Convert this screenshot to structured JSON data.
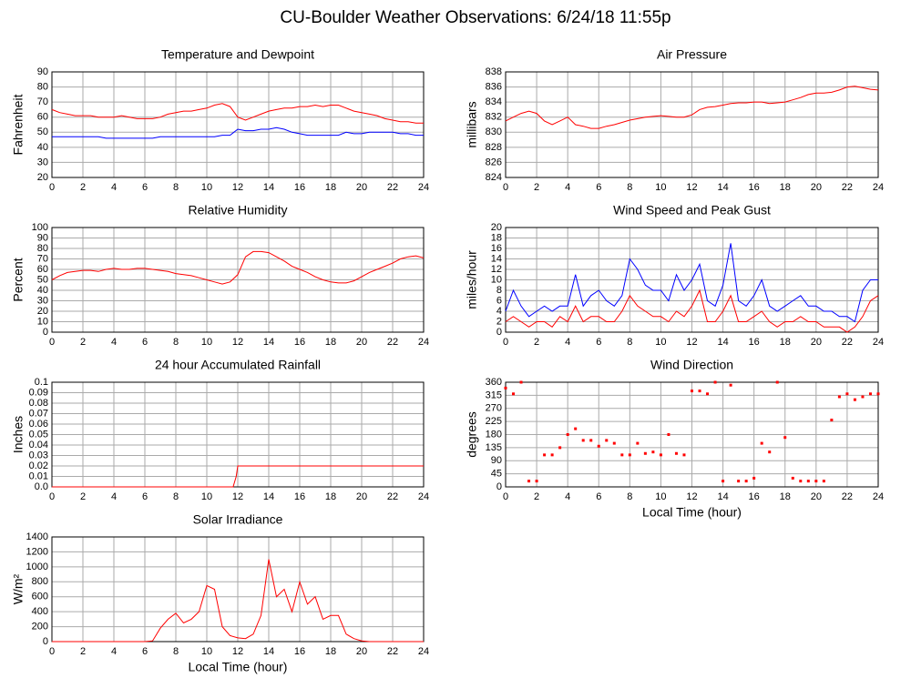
{
  "title": "CU-Boulder Weather Observations: 6/24/18 11:55p",
  "chart_data": [
    {
      "type": "line",
      "title": "Temperature and Dewpoint",
      "ylabel": "Fahrenheit",
      "x": [
        0,
        0.5,
        1,
        1.5,
        2,
        2.5,
        3,
        3.5,
        4,
        4.5,
        5,
        5.5,
        6,
        6.5,
        7,
        7.5,
        8,
        8.5,
        9,
        9.5,
        10,
        10.5,
        11,
        11.5,
        12,
        12.5,
        13,
        13.5,
        14,
        14.5,
        15,
        15.5,
        16,
        16.5,
        17,
        17.5,
        18,
        18.5,
        19,
        19.5,
        20,
        20.5,
        21,
        21.5,
        22,
        22.5,
        23,
        23.5,
        24
      ],
      "series": [
        {
          "color": "#ff0000",
          "values": [
            65,
            63,
            62,
            61,
            61,
            61,
            60,
            60,
            60,
            61,
            60,
            59,
            59,
            59,
            60,
            62,
            63,
            64,
            64,
            65,
            66,
            68,
            69,
            67,
            60,
            58,
            60,
            62,
            64,
            65,
            66,
            66,
            67,
            67,
            68,
            67,
            68,
            68,
            66,
            64,
            63,
            62,
            61,
            59,
            58,
            57,
            57,
            56,
            56
          ]
        },
        {
          "color": "#0000ff",
          "values": [
            47,
            47,
            47,
            47,
            47,
            47,
            47,
            46,
            46,
            46,
            46,
            46,
            46,
            46,
            47,
            47,
            47,
            47,
            47,
            47,
            47,
            47,
            48,
            48,
            52,
            51,
            51,
            52,
            52,
            53,
            52,
            50,
            49,
            48,
            48,
            48,
            48,
            48,
            50,
            49,
            49,
            50,
            50,
            50,
            50,
            49,
            49,
            48,
            48
          ]
        }
      ],
      "xlim": [
        0,
        24
      ],
      "xticks": [
        0,
        2,
        4,
        6,
        8,
        10,
        12,
        14,
        16,
        18,
        20,
        22,
        24
      ],
      "ylim": [
        20,
        90
      ],
      "yticks": [
        20,
        30,
        40,
        50,
        60,
        70,
        80,
        90
      ],
      "grid": true
    },
    {
      "type": "line",
      "title": "Air Pressure",
      "ylabel": "millibars",
      "x": [
        0,
        0.5,
        1,
        1.5,
        2,
        2.5,
        3,
        3.5,
        4,
        4.5,
        5,
        5.5,
        6,
        6.5,
        7,
        7.5,
        8,
        8.5,
        9,
        9.5,
        10,
        10.5,
        11,
        11.5,
        12,
        12.5,
        13,
        13.5,
        14,
        14.5,
        15,
        15.5,
        16,
        16.5,
        17,
        17.5,
        18,
        18.5,
        19,
        19.5,
        20,
        20.5,
        21,
        21.5,
        22,
        22.5,
        23,
        23.5,
        24
      ],
      "series": [
        {
          "color": "#ff0000",
          "values": [
            831.5,
            832,
            832.5,
            832.8,
            832.5,
            831.5,
            831,
            831.5,
            832,
            831,
            830.8,
            830.5,
            830.5,
            830.8,
            831,
            831.3,
            831.6,
            831.8,
            832,
            832.1,
            832.2,
            832.1,
            832,
            832,
            832.3,
            833,
            833.3,
            833.4,
            833.6,
            833.8,
            833.9,
            833.9,
            834,
            834,
            833.8,
            833.9,
            834,
            834.3,
            834.6,
            835,
            835.2,
            835.2,
            835.3,
            835.6,
            836,
            836.1,
            835.9,
            835.7,
            835.6
          ]
        }
      ],
      "xlim": [
        0,
        24
      ],
      "xticks": [
        0,
        2,
        4,
        6,
        8,
        10,
        12,
        14,
        16,
        18,
        20,
        22,
        24
      ],
      "ylim": [
        824,
        838
      ],
      "yticks": [
        824,
        826,
        828,
        830,
        832,
        834,
        836,
        838
      ],
      "grid": true
    },
    {
      "type": "line",
      "title": "Relative Humidity",
      "ylabel": "Percent",
      "x": [
        0,
        0.5,
        1,
        1.5,
        2,
        2.5,
        3,
        3.5,
        4,
        4.5,
        5,
        5.5,
        6,
        6.5,
        7,
        7.5,
        8,
        8.5,
        9,
        9.5,
        10,
        10.5,
        11,
        11.5,
        12,
        12.5,
        13,
        13.5,
        14,
        14.5,
        15,
        15.5,
        16,
        16.5,
        17,
        17.5,
        18,
        18.5,
        19,
        19.5,
        20,
        20.5,
        21,
        21.5,
        22,
        22.5,
        23,
        23.5,
        24
      ],
      "series": [
        {
          "color": "#ff0000",
          "values": [
            50,
            54,
            57,
            58,
            59,
            59,
            58,
            60,
            61,
            60,
            60,
            61,
            61,
            60,
            59,
            58,
            56,
            55,
            54,
            52,
            50,
            48,
            46,
            48,
            55,
            72,
            77,
            77,
            76,
            72,
            68,
            63,
            60,
            57,
            53,
            50,
            48,
            47,
            47,
            49,
            53,
            57,
            60,
            63,
            66,
            70,
            72,
            73,
            71
          ]
        }
      ],
      "xlim": [
        0,
        24
      ],
      "xticks": [
        0,
        2,
        4,
        6,
        8,
        10,
        12,
        14,
        16,
        18,
        20,
        22,
        24
      ],
      "ylim": [
        0,
        100
      ],
      "yticks": [
        0,
        10,
        20,
        30,
        40,
        50,
        60,
        70,
        80,
        90,
        100
      ],
      "grid": true
    },
    {
      "type": "line",
      "title": "Wind Speed and Peak Gust",
      "ylabel": "miles/hour",
      "x": [
        0,
        0.5,
        1,
        1.5,
        2,
        2.5,
        3,
        3.5,
        4,
        4.5,
        5,
        5.5,
        6,
        6.5,
        7,
        7.5,
        8,
        8.5,
        9,
        9.5,
        10,
        10.5,
        11,
        11.5,
        12,
        12.5,
        13,
        13.5,
        14,
        14.5,
        15,
        15.5,
        16,
        16.5,
        17,
        17.5,
        18,
        18.5,
        19,
        19.5,
        20,
        20.5,
        21,
        21.5,
        22,
        22.5,
        23,
        23.5,
        24
      ],
      "series": [
        {
          "color": "#0000ff",
          "values": [
            4,
            8,
            5,
            3,
            4,
            5,
            4,
            5,
            5,
            11,
            5,
            7,
            8,
            6,
            5,
            7,
            14,
            12,
            9,
            8,
            8,
            6,
            11,
            8,
            10,
            13,
            6,
            5,
            9,
            17,
            6,
            5,
            7,
            10,
            5,
            4,
            5,
            6,
            7,
            5,
            5,
            4,
            4,
            3,
            3,
            2,
            8,
            10,
            10
          ]
        },
        {
          "color": "#ff0000",
          "values": [
            2,
            3,
            2,
            1,
            2,
            2,
            1,
            3,
            2,
            5,
            2,
            3,
            3,
            2,
            2,
            4,
            7,
            5,
            4,
            3,
            3,
            2,
            4,
            3,
            5,
            8,
            2,
            2,
            4,
            7,
            2,
            2,
            3,
            4,
            2,
            1,
            2,
            2,
            3,
            2,
            2,
            1,
            1,
            1,
            0,
            1,
            3,
            6,
            7
          ]
        }
      ],
      "xlim": [
        0,
        24
      ],
      "xticks": [
        0,
        2,
        4,
        6,
        8,
        10,
        12,
        14,
        16,
        18,
        20,
        22,
        24
      ],
      "ylim": [
        0,
        20
      ],
      "yticks": [
        0,
        2,
        4,
        6,
        8,
        10,
        12,
        14,
        16,
        18,
        20
      ],
      "grid": true
    },
    {
      "type": "line",
      "title": "24 hour Accumulated Rainfall",
      "ylabel": "Inches",
      "x": [
        0,
        11.7,
        11.9,
        12,
        24
      ],
      "series": [
        {
          "color": "#ff0000",
          "values": [
            0,
            0,
            0.01,
            0.02,
            0.02
          ]
        }
      ],
      "xlim": [
        0,
        24
      ],
      "xticks": [
        0,
        2,
        4,
        6,
        8,
        10,
        12,
        14,
        16,
        18,
        20,
        22,
        24
      ],
      "ylim": [
        0,
        0.1
      ],
      "yticks": [
        {
          "value": 0,
          "label": "0.0"
        },
        0.01,
        0.02,
        0.03,
        0.04,
        0.05,
        0.06,
        0.07,
        0.08,
        0.09,
        0.1
      ],
      "grid": true
    },
    {
      "type": "scatter",
      "title": "Wind Direction",
      "ylabel": "degrees",
      "xlabel": "Local Time (hour)",
      "x": [
        0,
        0.5,
        1,
        1.5,
        2,
        2.5,
        3,
        3.5,
        4,
        4.5,
        5,
        5.5,
        6,
        6.5,
        7,
        7.5,
        8,
        8.5,
        9,
        9.5,
        10,
        10.5,
        11,
        11.5,
        12,
        12.5,
        13,
        13.5,
        14,
        14.5,
        15,
        15.5,
        16,
        16.5,
        17,
        17.5,
        18,
        18.5,
        19,
        19.5,
        20,
        20.5,
        21,
        21.5,
        22,
        22.5,
        23,
        23.5,
        24
      ],
      "series": [
        {
          "color": "#ff0000",
          "values": [
            340,
            320,
            360,
            20,
            20,
            110,
            110,
            135,
            180,
            200,
            160,
            160,
            140,
            160,
            150,
            110,
            110,
            150,
            115,
            120,
            110,
            180,
            115,
            110,
            330,
            330,
            320,
            360,
            20,
            350,
            20,
            20,
            30,
            150,
            120,
            360,
            170,
            30,
            20,
            20,
            20,
            20,
            230,
            310,
            320,
            300,
            310,
            320,
            320
          ]
        }
      ],
      "xlim": [
        0,
        24
      ],
      "xticks": [
        0,
        2,
        4,
        6,
        8,
        10,
        12,
        14,
        16,
        18,
        20,
        22,
        24
      ],
      "ylim": [
        0,
        360
      ],
      "yticks": [
        0,
        45,
        90,
        135,
        180,
        225,
        270,
        315,
        360
      ],
      "grid": true
    },
    {
      "type": "line",
      "title": "Solar Irradiance",
      "ylabel": "W/m²",
      "xlabel": "Local Time (hour)",
      "x": [
        0,
        0.5,
        1,
        1.5,
        2,
        2.5,
        3,
        3.5,
        4,
        4.5,
        5,
        5.5,
        6,
        6.5,
        7,
        7.5,
        8,
        8.5,
        9,
        9.5,
        10,
        10.5,
        11,
        11.5,
        12,
        12.5,
        13,
        13.5,
        14,
        14.5,
        15,
        15.5,
        16,
        16.5,
        17,
        17.5,
        18,
        18.5,
        19,
        19.5,
        20,
        20.5,
        21,
        21.5,
        22,
        22.5,
        23,
        23.5,
        24
      ],
      "series": [
        {
          "color": "#ff0000",
          "values": [
            0,
            0,
            0,
            0,
            0,
            0,
            0,
            0,
            0,
            0,
            0,
            0,
            0,
            10,
            180,
            300,
            380,
            250,
            300,
            400,
            750,
            700,
            200,
            80,
            50,
            40,
            100,
            350,
            1100,
            600,
            700,
            400,
            800,
            500,
            600,
            300,
            350,
            350,
            100,
            40,
            10,
            0,
            0,
            0,
            0,
            0,
            0,
            0,
            0
          ]
        }
      ],
      "xlim": [
        0,
        24
      ],
      "xticks": [
        0,
        2,
        4,
        6,
        8,
        10,
        12,
        14,
        16,
        18,
        20,
        22,
        24
      ],
      "ylim": [
        0,
        1400
      ],
      "yticks": [
        0,
        200,
        400,
        600,
        800,
        1000,
        1200,
        1400
      ],
      "grid": true
    }
  ]
}
